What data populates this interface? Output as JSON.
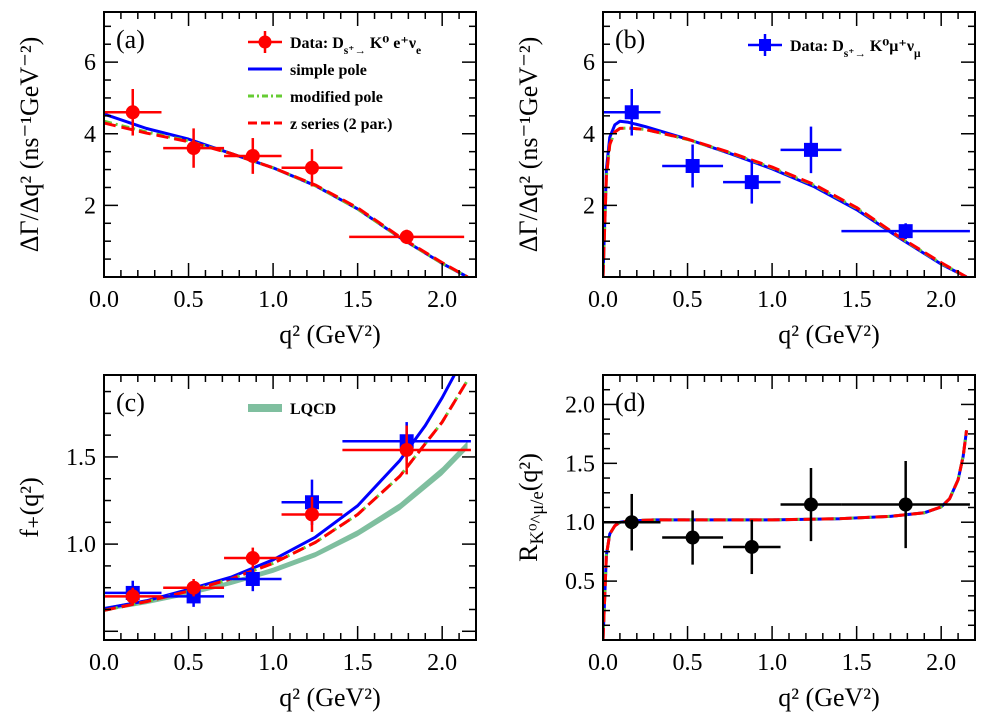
{
  "colors": {
    "data_red": "#ff0000",
    "data_blue": "#0000ff",
    "black": "#000000",
    "simple_pole": "#0000ff",
    "modified_pole": "#66cc33",
    "z_series": "#ff0000",
    "lqcd": "#7fbf9f"
  },
  "chart_data": [
    {
      "id": "a",
      "type": "line",
      "panel_label": "(a)",
      "xlabel": "q² (GeV²)",
      "ylabel": "ΔΓ/Δq² (ns⁻¹GeV⁻²)",
      "xlim": [
        0.0,
        2.2
      ],
      "ylim": [
        0.0,
        7.4
      ],
      "xticks": [
        0.0,
        0.5,
        1.0,
        1.5,
        2.0
      ],
      "xtick_labels": [
        "0.0",
        "0.5",
        "1.0",
        "1.5",
        "2.0"
      ],
      "yticks": [
        2,
        4,
        6
      ],
      "ytick_labels": [
        "2",
        "4",
        "6"
      ],
      "legend": [
        {
          "label": "Data: D_s⁺→ K⁰ e⁺ν_e",
          "kind": "marker",
          "marker": "circle",
          "color": "#ff0000"
        },
        {
          "label": "simple pole",
          "kind": "line",
          "style": "solid",
          "color": "#0000ff"
        },
        {
          "label": "modified pole",
          "kind": "line",
          "style": "dashdot",
          "color": "#66cc33"
        },
        {
          "label": "z series (2 par.)",
          "kind": "line",
          "style": "dashed",
          "color": "#ff0000"
        }
      ],
      "points": [
        {
          "name": "Data e",
          "marker": "circle",
          "color": "#ff0000",
          "x": [
            0.17,
            0.53,
            0.88,
            1.23,
            1.79
          ],
          "xerr": [
            0.17,
            0.18,
            0.17,
            0.18,
            0.34
          ],
          "y": [
            4.6,
            3.6,
            3.38,
            3.05,
            1.12
          ],
          "yerr": [
            0.65,
            0.55,
            0.5,
            0.52,
            0.2
          ]
        }
      ],
      "series": [
        {
          "name": "simple pole",
          "style": "solid",
          "color": "#0000ff",
          "width": 3,
          "x": [
            0.0,
            0.25,
            0.5,
            0.75,
            1.0,
            1.25,
            1.5,
            1.75,
            2.0,
            2.15
          ],
          "y": [
            4.55,
            4.15,
            3.85,
            3.45,
            3.05,
            2.55,
            1.9,
            1.1,
            0.38,
            0.0
          ]
        },
        {
          "name": "modified pole",
          "style": "dashdot",
          "color": "#66cc33",
          "width": 3,
          "x": [
            0.0,
            0.25,
            0.5,
            0.75,
            1.0,
            1.25,
            1.5,
            1.75,
            2.0,
            2.15
          ],
          "y": [
            4.35,
            4.05,
            3.8,
            3.45,
            3.05,
            2.55,
            1.9,
            1.1,
            0.38,
            0.0
          ]
        },
        {
          "name": "z series (2 par.)",
          "style": "dashed",
          "color": "#ff0000",
          "width": 3,
          "x": [
            0.0,
            0.25,
            0.5,
            0.75,
            1.0,
            1.25,
            1.5,
            1.75,
            2.0,
            2.15
          ],
          "y": [
            4.3,
            4.02,
            3.78,
            3.45,
            3.05,
            2.57,
            1.93,
            1.12,
            0.4,
            0.0
          ]
        }
      ]
    },
    {
      "id": "b",
      "type": "line",
      "panel_label": "(b)",
      "xlabel": "q² (GeV²)",
      "ylabel": "ΔΓ/Δq² (ns⁻¹GeV⁻²)",
      "xlim": [
        0.0,
        2.2
      ],
      "ylim": [
        0.0,
        7.4
      ],
      "xticks": [
        0.0,
        0.5,
        1.0,
        1.5,
        2.0
      ],
      "xtick_labels": [
        "0.0",
        "0.5",
        "1.0",
        "1.5",
        "2.0"
      ],
      "yticks": [
        2,
        4,
        6
      ],
      "ytick_labels": [
        "2",
        "4",
        "6"
      ],
      "legend": [
        {
          "label": "Data: D_s⁺→ K⁰μ⁺ν_μ",
          "kind": "marker",
          "marker": "square",
          "color": "#0000ff"
        }
      ],
      "points": [
        {
          "name": "Data mu",
          "marker": "square",
          "color": "#0000ff",
          "x": [
            0.17,
            0.53,
            0.88,
            1.23,
            1.79
          ],
          "xerr": [
            0.17,
            0.18,
            0.17,
            0.18,
            0.38
          ],
          "y": [
            4.6,
            3.1,
            2.65,
            3.55,
            1.28
          ],
          "yerr": [
            0.65,
            0.6,
            0.6,
            0.65,
            0.22
          ]
        }
      ],
      "series": [
        {
          "name": "simple pole",
          "style": "solid",
          "color": "#0000ff",
          "width": 3,
          "x": [
            0.0,
            0.02,
            0.04,
            0.07,
            0.1,
            0.15,
            0.25,
            0.5,
            0.75,
            1.0,
            1.25,
            1.5,
            1.75,
            2.0,
            2.15
          ],
          "y": [
            0.0,
            3.0,
            3.9,
            4.25,
            4.35,
            4.32,
            4.2,
            3.85,
            3.45,
            3.02,
            2.52,
            1.88,
            1.1,
            0.36,
            0.0
          ]
        },
        {
          "name": "modified pole",
          "style": "dashdot",
          "color": "#66cc33",
          "width": 3,
          "x": [
            0.0,
            0.02,
            0.04,
            0.07,
            0.1,
            0.15,
            0.25,
            0.5,
            0.75,
            1.0,
            1.25,
            1.5,
            1.75,
            2.0,
            2.15
          ],
          "y": [
            0.0,
            2.8,
            3.7,
            4.05,
            4.15,
            4.16,
            4.12,
            3.84,
            3.47,
            3.05,
            2.56,
            1.92,
            1.12,
            0.38,
            0.0
          ]
        },
        {
          "name": "z series (2 par.)",
          "style": "dashed",
          "color": "#ff0000",
          "width": 3,
          "x": [
            0.0,
            0.02,
            0.04,
            0.07,
            0.1,
            0.15,
            0.25,
            0.5,
            0.75,
            1.0,
            1.25,
            1.5,
            1.75,
            2.0,
            2.15
          ],
          "y": [
            0.0,
            2.8,
            3.7,
            4.05,
            4.15,
            4.16,
            4.12,
            3.85,
            3.48,
            3.07,
            2.58,
            1.94,
            1.13,
            0.4,
            0.0
          ]
        }
      ]
    },
    {
      "id": "c",
      "type": "line",
      "panel_label": "(c)",
      "xlabel": "q² (GeV²)",
      "ylabel": "f₊(q²)",
      "xlim": [
        0.0,
        2.2
      ],
      "ylim": [
        0.45,
        1.97
      ],
      "xticks": [
        0.0,
        0.5,
        1.0,
        1.5,
        2.0
      ],
      "xtick_labels": [
        "0.0",
        "0.5",
        "1.0",
        "1.5",
        "2.0"
      ],
      "yticks": [
        1.0,
        1.5
      ],
      "ytick_labels": [
        "1.0",
        "1.5"
      ],
      "legend": [
        {
          "label": "LQCD",
          "kind": "band",
          "color": "#7fbf9f"
        }
      ],
      "band": {
        "name": "LQCD",
        "color": "#7fbf9f",
        "x": [
          0.0,
          0.25,
          0.5,
          0.75,
          1.0,
          1.25,
          1.5,
          1.75,
          2.0,
          2.15
        ],
        "low": [
          0.615,
          0.655,
          0.705,
          0.765,
          0.835,
          0.925,
          1.045,
          1.195,
          1.395,
          1.545
        ],
        "high": [
          0.64,
          0.68,
          0.73,
          0.79,
          0.865,
          0.955,
          1.08,
          1.235,
          1.44,
          1.59
        ]
      },
      "points": [
        {
          "name": "Data mu",
          "marker": "square",
          "color": "#0000ff",
          "x": [
            0.17,
            0.53,
            0.88,
            1.23,
            1.79
          ],
          "xerr": [
            0.17,
            0.18,
            0.17,
            0.18,
            0.38
          ],
          "y": [
            0.72,
            0.7,
            0.8,
            1.24,
            1.59
          ],
          "yerr": [
            0.07,
            0.06,
            0.07,
            0.13,
            0.11
          ]
        },
        {
          "name": "Data e",
          "marker": "circle",
          "color": "#ff0000",
          "x": [
            0.17,
            0.53,
            0.88,
            1.23,
            1.79
          ],
          "xerr": [
            0.17,
            0.18,
            0.17,
            0.18,
            0.38
          ],
          "y": [
            0.7,
            0.75,
            0.92,
            1.17,
            1.54
          ],
          "yerr": [
            0.05,
            0.05,
            0.06,
            0.1,
            0.14
          ]
        }
      ],
      "series": [
        {
          "name": "simple pole",
          "style": "solid",
          "color": "#0000ff",
          "width": 3,
          "x": [
            0.0,
            0.25,
            0.5,
            0.75,
            1.0,
            1.25,
            1.5,
            1.75,
            1.9,
            2.0,
            2.05,
            2.1
          ],
          "y": [
            0.63,
            0.675,
            0.74,
            0.81,
            0.91,
            1.04,
            1.22,
            1.48,
            1.68,
            1.84,
            1.93,
            2.02
          ]
        },
        {
          "name": "modified pole",
          "style": "dashdot",
          "color": "#66cc33",
          "width": 3,
          "x": [
            0.0,
            0.25,
            0.5,
            0.75,
            1.0,
            1.25,
            1.5,
            1.75,
            2.0,
            2.15
          ],
          "y": [
            0.62,
            0.67,
            0.73,
            0.8,
            0.89,
            1.01,
            1.17,
            1.39,
            1.7,
            1.94
          ]
        },
        {
          "name": "z series (2 par.)",
          "style": "dashed",
          "color": "#ff0000",
          "width": 3,
          "x": [
            0.0,
            0.25,
            0.5,
            0.75,
            1.0,
            1.25,
            1.5,
            1.75,
            2.0,
            2.15
          ],
          "y": [
            0.62,
            0.67,
            0.73,
            0.8,
            0.89,
            1.01,
            1.17,
            1.39,
            1.7,
            1.94
          ]
        }
      ]
    },
    {
      "id": "d",
      "type": "line",
      "panel_label": "(d)",
      "xlabel": "q² (GeV²)",
      "ylabel": "R_K⁰^μ/e(q²)",
      "xlim": [
        0.0,
        2.2
      ],
      "ylim": [
        0.0,
        2.25
      ],
      "xticks": [
        0.0,
        0.5,
        1.0,
        1.5,
        2.0
      ],
      "xtick_labels": [
        "0.0",
        "0.5",
        "1.0",
        "1.5",
        "2.0"
      ],
      "yticks": [
        0.5,
        1.0,
        1.5,
        2.0
      ],
      "ytick_labels": [
        "0.5",
        "1.0",
        "1.5",
        "2.0"
      ],
      "legend": [],
      "points": [
        {
          "name": "Ratio",
          "marker": "circle",
          "color": "#000000",
          "x": [
            0.17,
            0.53,
            0.88,
            1.23,
            1.79
          ],
          "xerr": [
            0.17,
            0.18,
            0.17,
            0.18,
            0.38
          ],
          "y": [
            1.0,
            0.87,
            0.79,
            1.15,
            1.15
          ],
          "yerr": [
            0.24,
            0.23,
            0.23,
            0.31,
            0.37
          ]
        }
      ],
      "series": [
        {
          "name": "simple pole",
          "style": "solid",
          "color": "#0000ff",
          "width": 3,
          "x": [
            0.0,
            0.02,
            0.04,
            0.07,
            0.1,
            0.15,
            0.3,
            0.6,
            1.0,
            1.4,
            1.7,
            1.9,
            2.0,
            2.05,
            2.1,
            2.13,
            2.15
          ],
          "y": [
            0.0,
            0.72,
            0.9,
            0.97,
            1.0,
            1.01,
            1.02,
            1.02,
            1.02,
            1.03,
            1.05,
            1.08,
            1.13,
            1.2,
            1.36,
            1.56,
            1.78
          ]
        },
        {
          "name": "modified pole",
          "style": "dashdot",
          "color": "#66cc33",
          "width": 3,
          "x": [
            0.0,
            0.02,
            0.04,
            0.07,
            0.1,
            0.15,
            0.3,
            0.6,
            1.0,
            1.4,
            1.7,
            1.9,
            2.0,
            2.05,
            2.1,
            2.13,
            2.15
          ],
          "y": [
            0.0,
            0.72,
            0.9,
            0.97,
            1.0,
            1.01,
            1.02,
            1.02,
            1.02,
            1.03,
            1.05,
            1.08,
            1.13,
            1.2,
            1.36,
            1.56,
            1.78
          ]
        },
        {
          "name": "z series (2 par.)",
          "style": "dashed",
          "color": "#ff0000",
          "width": 3,
          "x": [
            0.0,
            0.02,
            0.04,
            0.07,
            0.1,
            0.15,
            0.3,
            0.6,
            1.0,
            1.4,
            1.7,
            1.9,
            2.0,
            2.05,
            2.1,
            2.13,
            2.15
          ],
          "y": [
            0.0,
            0.72,
            0.9,
            0.97,
            1.0,
            1.01,
            1.02,
            1.02,
            1.02,
            1.03,
            1.05,
            1.08,
            1.13,
            1.2,
            1.36,
            1.56,
            1.78
          ]
        }
      ]
    }
  ]
}
